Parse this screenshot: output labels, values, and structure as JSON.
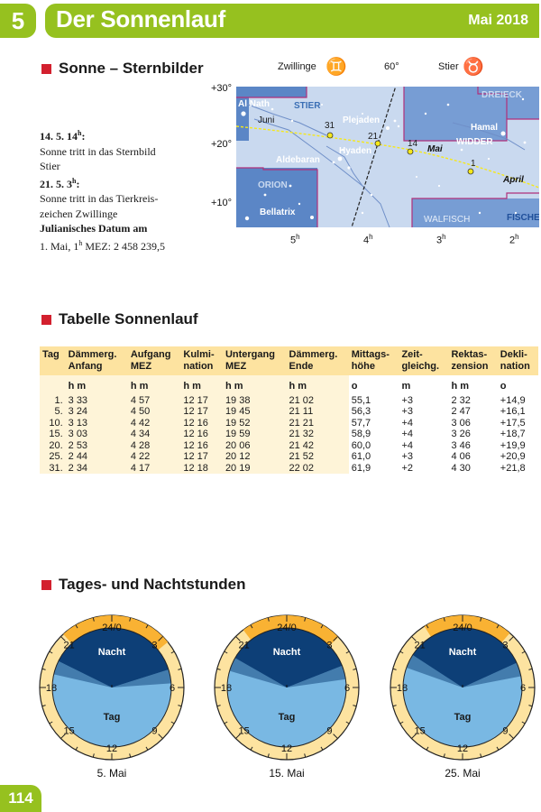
{
  "header": {
    "chapter": "5",
    "title": "Der Sonnenlauf",
    "month": "Mai 2018"
  },
  "section1": {
    "title": "Sonne – Sternbilder",
    "entries": [
      {
        "date": "14. 5. 14",
        "sup": "h",
        "colon": ":",
        "text1": "Sonne tritt in das Sternbild",
        "text2": "Stier"
      },
      {
        "date": "21. 5.   3",
        "sup": "h",
        "colon": ":",
        "text1": "Sonne tritt in das Tierkreis-",
        "text2": "zeichen Zwillinge"
      }
    ],
    "julian_label": "Julianisches Datum am",
    "julian_pre": "1. Mai, 1",
    "julian_sup": "h",
    "julian_post": " MEZ: 2 458 239,5"
  },
  "starmap": {
    "top_labels": {
      "left": "Zwillinge",
      "mid": "60°",
      "right": "Stier"
    },
    "left_glyph": "♊",
    "right_glyph": "♉",
    "dec_labels": [
      "+30°",
      "+20°",
      "+10°"
    ],
    "ra_labels": [
      {
        "h": "5",
        "s": "h"
      },
      {
        "h": "4",
        "s": "h"
      },
      {
        "h": "3",
        "s": "h"
      },
      {
        "h": "2",
        "s": "h"
      }
    ],
    "names": {
      "al_nath": "Al Nath",
      "stier": "STIER",
      "juni": "Juni",
      "plejaden": "Plejaden",
      "aldebaran": "Aldebaran",
      "hyaden": "Hyaden",
      "orion": "ORION",
      "bellatrix": "Bellatrix",
      "dreieck": "DREIECK",
      "hamal": "Hamal",
      "widder": "WIDDER",
      "mai": "Mai",
      "april": "April",
      "walfisch": "WALFISCH",
      "fische": "FISCHE"
    },
    "day_marks": [
      "31",
      "21",
      "14",
      "1"
    ]
  },
  "section2": {
    "title": "Tabelle Sonnenlauf",
    "headers": [
      [
        "Tag",
        ""
      ],
      [
        "Dämmerg.",
        "Anfang"
      ],
      [
        "Aufgang",
        "MEZ"
      ],
      [
        "Kulmi-",
        "nation"
      ],
      [
        "Untergang",
        "MEZ"
      ],
      [
        "Dämmerg.",
        "Ende"
      ],
      [
        "Mittags-",
        "höhe"
      ],
      [
        "Zeit-",
        "gleichg."
      ],
      [
        "Rektas-",
        "zension"
      ],
      [
        "Dekli-",
        "nation"
      ]
    ],
    "units": [
      "",
      "h  m",
      "h  m",
      "h  m",
      "h  m",
      "h  m",
      "o",
      "m",
      "h  m",
      "o"
    ],
    "rows": [
      [
        "1.",
        "3  33",
        "4  57",
        "12  17",
        "19  38",
        "21  02",
        "55,1",
        "+3",
        "2  32",
        "+14,9"
      ],
      [
        "5.",
        "3  24",
        "4  50",
        "12  17",
        "19  45",
        "21  11",
        "56,3",
        "+3",
        "2  47",
        "+16,1"
      ],
      [
        "10.",
        "3  13",
        "4  42",
        "12  16",
        "19  52",
        "21  21",
        "57,7",
        "+4",
        "3  06",
        "+17,5"
      ],
      [
        "15.",
        "3  03",
        "4  34",
        "12  16",
        "19  59",
        "21  32",
        "58,9",
        "+4",
        "3  26",
        "+18,7"
      ],
      [
        "20.",
        "2  53",
        "4  28",
        "12  16",
        "20  06",
        "21  42",
        "60,0",
        "+4",
        "3  46",
        "+19,9"
      ],
      [
        "25.",
        "2  44",
        "4  22",
        "12  17",
        "20  12",
        "21  52",
        "61,0",
        "+3",
        "4  06",
        "+20,9"
      ],
      [
        "31.",
        "2  34",
        "4  17",
        "12  18",
        "20  19",
        "22  02",
        "61,9",
        "+2",
        "4  30",
        "+21,8"
      ]
    ]
  },
  "section3": {
    "title": "Tages- und Nachtstunden",
    "hour_labels": [
      "24/0",
      "3",
      "6",
      "9",
      "12",
      "15",
      "18",
      "21"
    ],
    "night_label": "Nacht",
    "day_label": "Tag",
    "clocks": [
      {
        "caption": "5. Mai",
        "sunrise": 4.83,
        "sunset": 19.75,
        "dawn": 3.4,
        "dusk": 21.18
      },
      {
        "caption": "15. Mai",
        "sunrise": 4.57,
        "sunset": 19.98,
        "dawn": 3.05,
        "dusk": 21.53
      },
      {
        "caption": "25. Mai",
        "sunrise": 4.37,
        "sunset": 20.2,
        "dawn": 2.73,
        "dusk": 21.87
      }
    ]
  },
  "footer": {
    "page": "114"
  },
  "colors": {
    "green": "#96c11f",
    "red": "#d3202e",
    "night": "#0d3f77",
    "day": "#79b8e3",
    "twilight": "#f9b233",
    "ring": "#fde3a0"
  }
}
